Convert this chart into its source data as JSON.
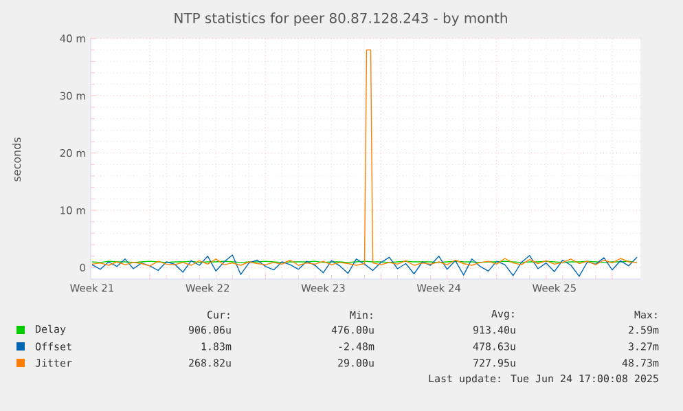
{
  "chart_data": {
    "type": "line",
    "title": "NTP statistics for peer 80.87.128.243 - by month",
    "ylabel": "seconds",
    "x": [
      "2025-05-22T12:00",
      "2025-05-23T00:00",
      "2025-05-23T12:00",
      "2025-05-24T00:00",
      "2025-05-24T12:00",
      "2025-05-25T00:00",
      "2025-05-25T12:00",
      "2025-05-26T00:00",
      "2025-05-26T12:00",
      "2025-05-27T00:00",
      "2025-05-27T12:00",
      "2025-05-28T00:00",
      "2025-05-28T12:00",
      "2025-05-29T00:00",
      "2025-05-29T12:00",
      "2025-05-30T00:00",
      "2025-05-30T12:00",
      "2025-05-31T00:00",
      "2025-05-31T12:00",
      "2025-06-01T00:00",
      "2025-06-01T12:00",
      "2025-06-02T00:00",
      "2025-06-02T12:00",
      "2025-06-03T00:00",
      "2025-06-03T12:00",
      "2025-06-04T00:00",
      "2025-06-04T12:00",
      "2025-06-05T00:00",
      "2025-06-05T12:00",
      "2025-06-06T00:00",
      "2025-06-06T12:00",
      "2025-06-07T00:00",
      "2025-06-07T12:00",
      "2025-06-08T00:00",
      "2025-06-08T12:00",
      "2025-06-09T00:00",
      "2025-06-09T12:00",
      "2025-06-10T00:00",
      "2025-06-10T12:00",
      "2025-06-11T00:00",
      "2025-06-11T12:00",
      "2025-06-12T00:00",
      "2025-06-12T12:00",
      "2025-06-13T00:00",
      "2025-06-13T12:00",
      "2025-06-14T00:00",
      "2025-06-14T12:00",
      "2025-06-15T00:00",
      "2025-06-15T12:00",
      "2025-06-16T00:00",
      "2025-06-16T12:00",
      "2025-06-17T00:00",
      "2025-06-17T12:00",
      "2025-06-18T00:00",
      "2025-06-18T12:00",
      "2025-06-19T00:00",
      "2025-06-19T12:00",
      "2025-06-20T00:00",
      "2025-06-20T12:00",
      "2025-06-21T00:00",
      "2025-06-21T12:00",
      "2025-06-22T00:00",
      "2025-06-22T12:00",
      "2025-06-23T00:00",
      "2025-06-23T12:00",
      "2025-06-24T00:00",
      "2025-06-24T12:00"
    ],
    "series": [
      {
        "name": "Delay",
        "color": "#00cc00",
        "values": [
          1.0,
          0.9,
          1.1,
          1.0,
          1.0,
          0.9,
          1.0,
          1.1,
          1.0,
          0.9,
          1.0,
          1.0,
          1.1,
          0.9,
          1.0,
          1.0,
          1.1,
          1.0,
          0.9,
          1.0,
          1.0,
          1.1,
          1.0,
          0.9,
          1.0,
          1.0,
          1.0,
          1.1,
          0.9,
          1.0,
          1.0,
          0.9,
          1.0,
          1.1,
          1.0,
          1.0,
          0.9,
          1.0,
          1.1,
          1.0,
          1.0,
          1.0,
          0.9,
          1.0,
          1.1,
          1.0,
          1.0,
          0.9,
          1.0,
          1.0,
          1.1,
          1.0,
          0.9,
          1.0,
          1.0,
          1.1,
          1.0,
          0.9,
          1.0,
          1.0,
          1.1,
          1.0,
          0.9,
          1.0,
          1.0,
          1.1,
          0.9
        ]
      },
      {
        "name": "Offset",
        "color": "#0066b3",
        "values": [
          0.5,
          -0.3,
          1.0,
          0.2,
          1.5,
          -0.2,
          0.8,
          0.3,
          -0.5,
          1.0,
          0.6,
          -0.8,
          1.2,
          0.4,
          2.0,
          -0.6,
          1.0,
          2.2,
          -1.2,
          0.8,
          1.3,
          0.2,
          -0.4,
          1.0,
          0.5,
          -0.3,
          1.1,
          0.4,
          -0.9,
          1.2,
          0.3,
          -1.0,
          1.5,
          0.6,
          -0.5,
          0.9,
          1.8,
          -0.2,
          0.7,
          -1.1,
          1.0,
          0.4,
          2.0,
          -0.3,
          1.2,
          -1.3,
          1.5,
          0.2,
          -0.6,
          1.1,
          0.5,
          -1.4,
          0.9,
          2.1,
          -0.2,
          0.8,
          -0.7,
          1.3,
          0.4,
          -1.5,
          1.0,
          0.6,
          1.7,
          -0.4,
          1.2,
          0.3,
          1.8
        ]
      },
      {
        "name": "Jitter",
        "color": "#ff8000",
        "x": [
          "2025-05-22T12:00",
          "2025-05-23T00:00",
          "2025-05-23T12:00",
          "2025-05-24T00:00",
          "2025-05-24T12:00",
          "2025-05-25T00:00",
          "2025-05-25T12:00",
          "2025-05-26T00:00",
          "2025-05-26T12:00",
          "2025-05-27T00:00",
          "2025-05-27T12:00",
          "2025-05-28T00:00",
          "2025-05-28T12:00",
          "2025-05-29T00:00",
          "2025-05-29T12:00",
          "2025-05-30T00:00",
          "2025-05-30T12:00",
          "2025-05-31T00:00",
          "2025-05-31T12:00",
          "2025-06-01T00:00",
          "2025-06-01T12:00",
          "2025-06-02T00:00",
          "2025-06-02T12:00",
          "2025-06-03T00:00",
          "2025-06-03T12:00",
          "2025-06-04T00:00",
          "2025-06-04T12:00",
          "2025-06-05T00:00",
          "2025-06-05T12:00",
          "2025-06-06T00:00",
          "2025-06-06T12:00",
          "2025-06-07T00:00",
          "2025-06-07T12:00",
          "2025-06-08T00:00",
          "2025-06-08T03:00",
          "2025-06-08T09:00",
          "2025-06-08T12:00",
          "2025-06-09T00:00",
          "2025-06-09T12:00",
          "2025-06-10T00:00",
          "2025-06-10T12:00",
          "2025-06-11T00:00",
          "2025-06-11T12:00",
          "2025-06-12T00:00",
          "2025-06-12T12:00",
          "2025-06-13T00:00",
          "2025-06-13T12:00",
          "2025-06-14T00:00",
          "2025-06-14T12:00",
          "2025-06-15T00:00",
          "2025-06-15T12:00",
          "2025-06-16T00:00",
          "2025-06-16T12:00",
          "2025-06-17T00:00",
          "2025-06-17T12:00",
          "2025-06-18T00:00",
          "2025-06-18T12:00",
          "2025-06-19T00:00",
          "2025-06-19T12:00",
          "2025-06-20T00:00",
          "2025-06-20T12:00",
          "2025-06-21T00:00",
          "2025-06-21T12:00",
          "2025-06-22T00:00",
          "2025-06-22T12:00",
          "2025-06-23T00:00",
          "2025-06-23T12:00",
          "2025-06-24T00:00",
          "2025-06-24T12:00"
        ],
        "values": [
          0.6,
          0.8,
          0.4,
          1.0,
          0.5,
          0.9,
          0.7,
          0.3,
          1.1,
          0.6,
          0.5,
          0.9,
          0.4,
          1.2,
          0.6,
          1.5,
          0.5,
          0.8,
          0.4,
          1.0,
          0.7,
          0.5,
          0.9,
          0.6,
          1.3,
          0.4,
          0.8,
          0.6,
          1.1,
          0.5,
          0.9,
          0.7,
          0.4,
          0.7,
          38,
          38,
          0.8,
          0.5,
          0.9,
          0.6,
          1.2,
          0.4,
          0.8,
          0.6,
          1.0,
          0.5,
          1.3,
          0.7,
          0.4,
          0.9,
          1.1,
          0.6,
          1.6,
          0.8,
          0.5,
          1.4,
          0.7,
          1.2,
          0.6,
          0.9,
          1.5,
          0.7,
          1.1,
          0.5,
          1.3,
          0.8,
          1.6,
          1.0,
          0.9
        ]
      }
    ],
    "xlim": [
      "2025-05-22T10:00",
      "2025-06-24T17:00"
    ],
    "ylim": [
      -2,
      40
    ],
    "xticks": [
      {
        "value": "2025-05-22T12:00",
        "label": "Week 21"
      },
      {
        "value": "2025-05-26",
        "label": null
      },
      {
        "value": "2025-05-29T12:00",
        "label": "Week 22"
      },
      {
        "value": "2025-06-02",
        "label": null
      },
      {
        "value": "2025-06-05T12:00",
        "label": "Week 23"
      },
      {
        "value": "2025-06-09",
        "label": null
      },
      {
        "value": "2025-06-12T12:00",
        "label": "Week 24"
      },
      {
        "value": "2025-06-16",
        "label": null
      },
      {
        "value": "2025-06-19T12:00",
        "label": "Week 25"
      },
      {
        "value": "2025-06-23",
        "label": null
      }
    ],
    "yticks": [
      0,
      {
        "value": 10,
        "label": "10 m"
      },
      {
        "value": 20,
        "label": "20 m"
      },
      {
        "value": 30,
        "label": "30 m"
      },
      {
        "value": 40,
        "label": "40 m"
      }
    ],
    "grid": true,
    "legend": "bottom",
    "marker": "none",
    "line_style": "solid",
    "annotations": [
      "Cur:",
      "Min:",
      "Avg:",
      "Max:",
      "906.06u",
      "476.00u",
      "913.40u",
      "2.59m",
      "1.83m",
      "-2.48m",
      "478.63u",
      "3.27m",
      "268.82u",
      "29.00u",
      "727.95u",
      "48.73m",
      "Last update: Tue Jun 24 17:00:08 2025"
    ]
  }
}
